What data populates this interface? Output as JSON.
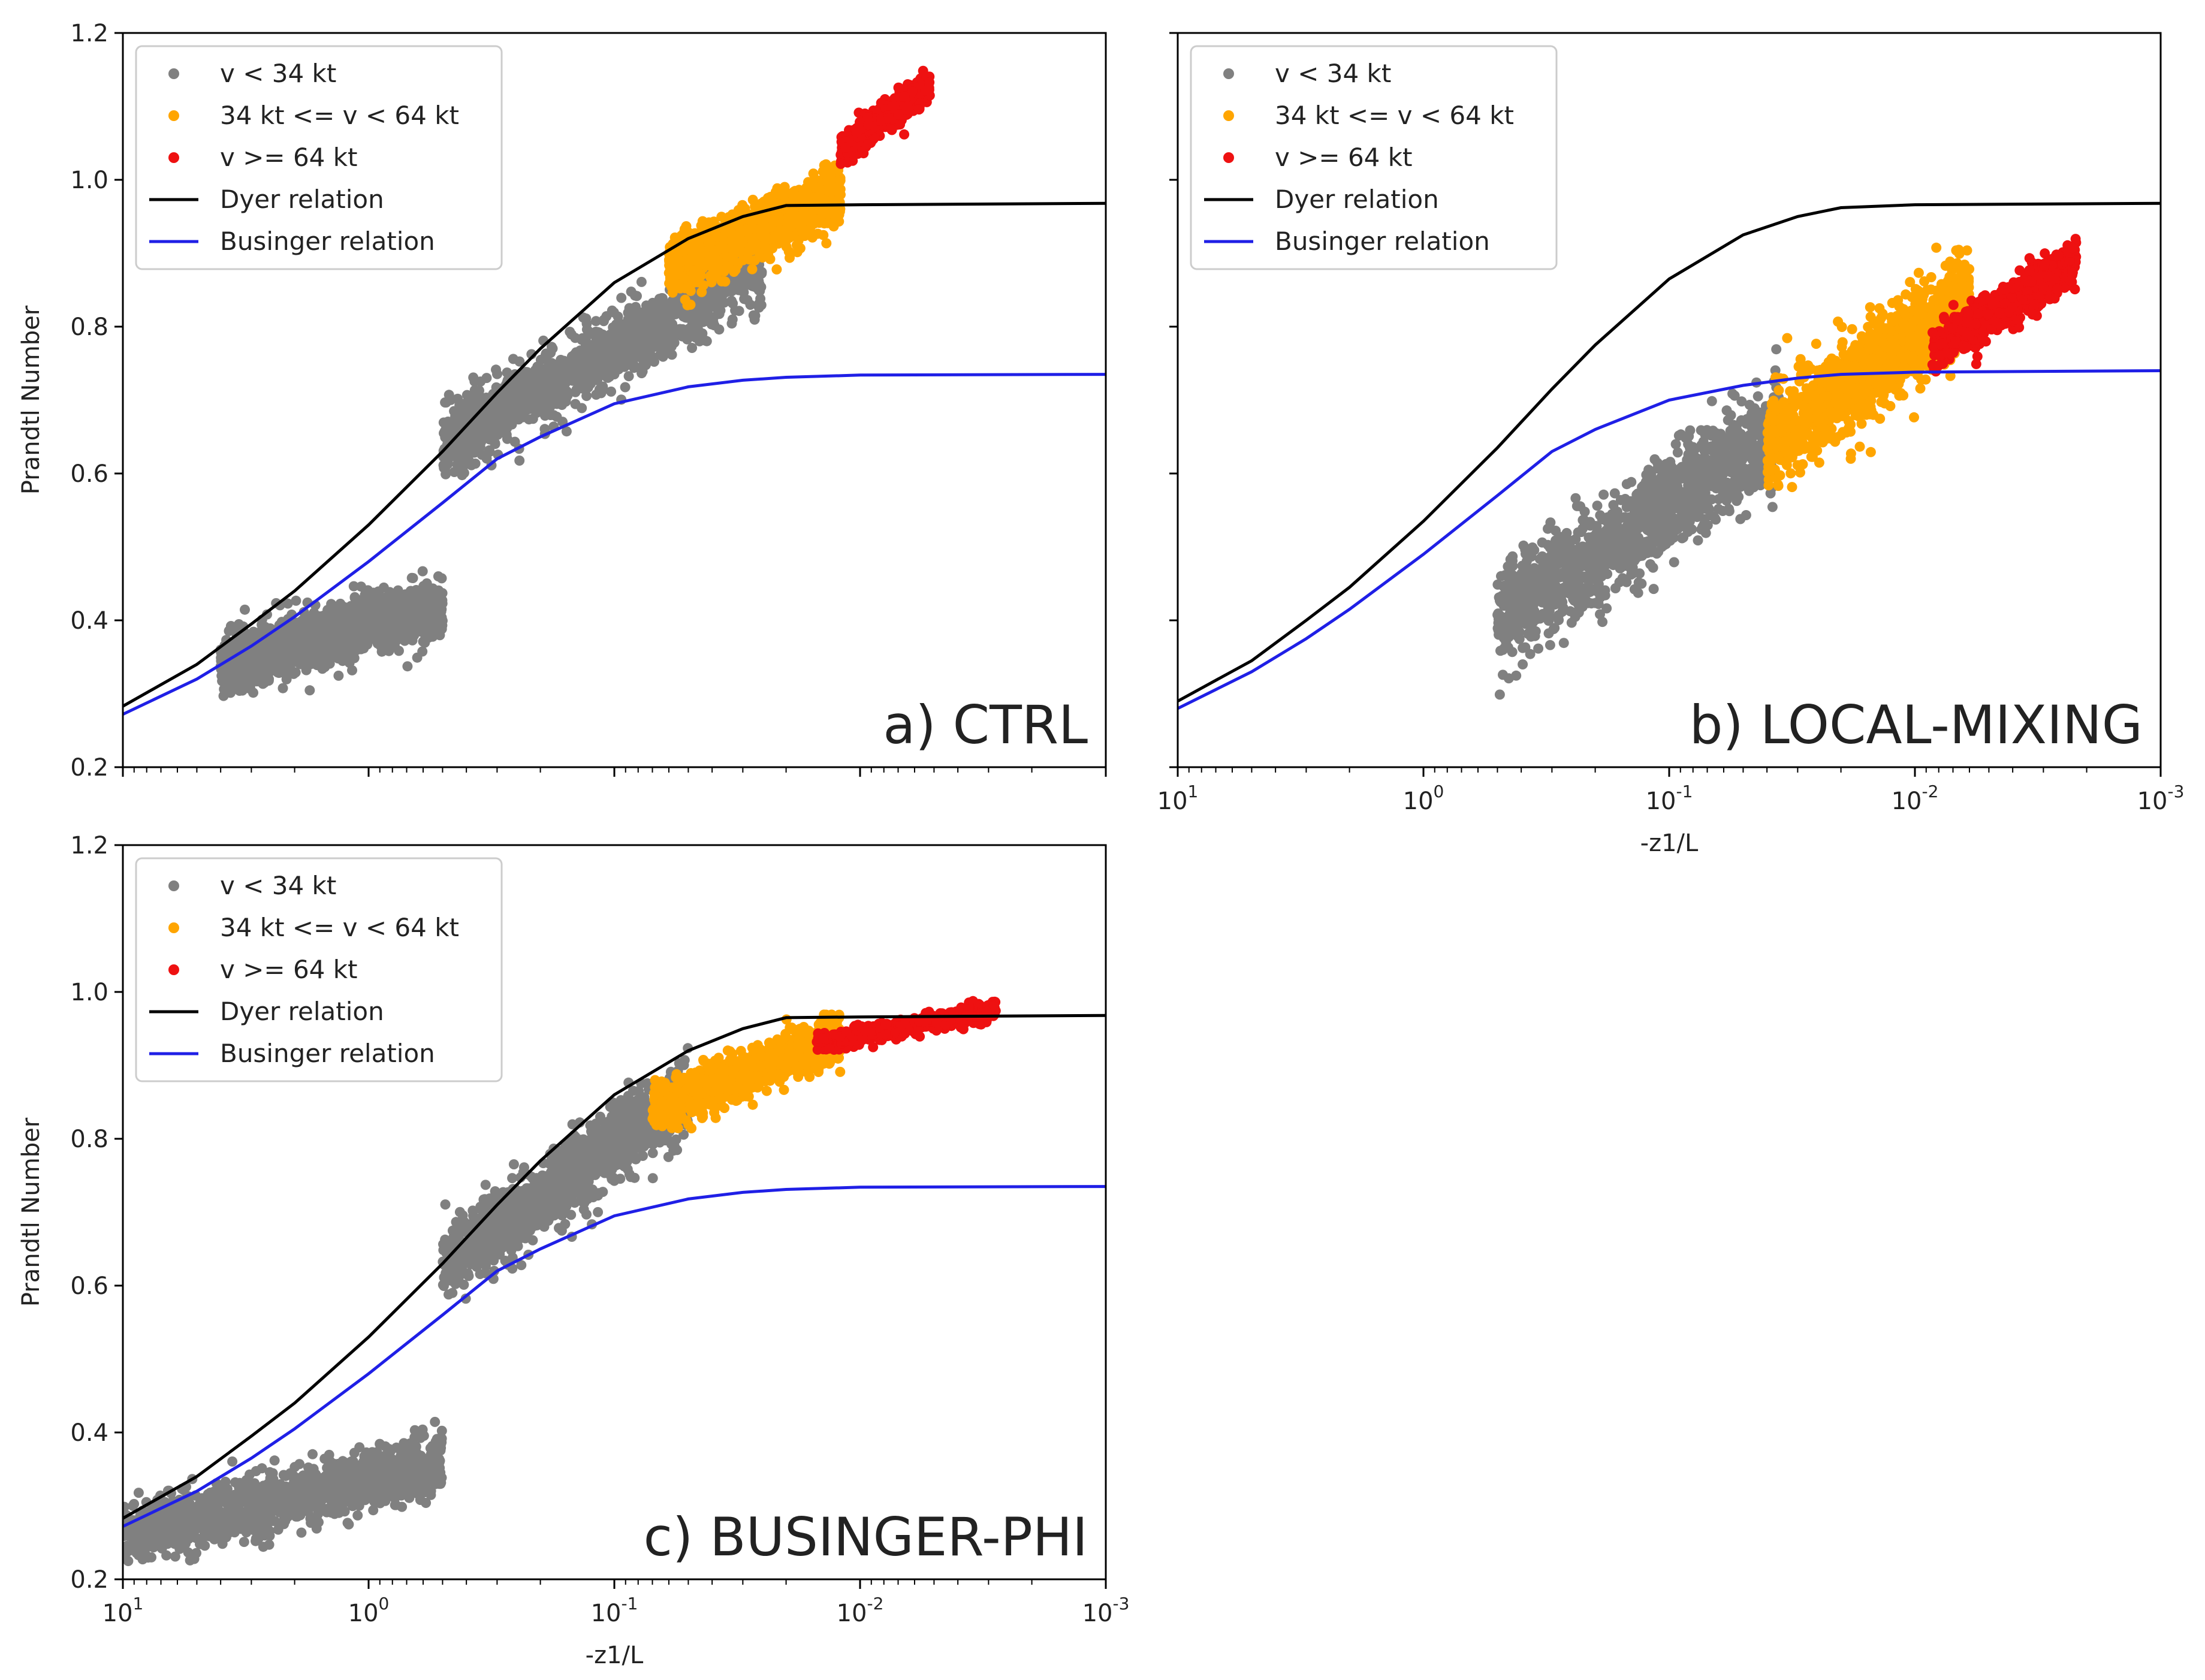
{
  "colors": {
    "gray": "#808080",
    "orange": "#ffa500",
    "red": "#ee1111",
    "dyer": "#000000",
    "businger": "#1f1fe6"
  },
  "chart_data": [
    {
      "id": "a",
      "type": "scatter",
      "panel_label": "a) CTRL",
      "xlabel": "",
      "ylabel": "Prandtl Number",
      "xscale": "log-reversed",
      "xlim": [
        10,
        0.001
      ],
      "ylim": [
        0.2,
        1.2
      ],
      "yticks": [
        "0.2",
        "0.4",
        "0.6",
        "0.8",
        "1.0",
        "1.2"
      ],
      "xticks": [],
      "legend": {
        "position": "top-left",
        "entries": [
          "v < 34 kt",
          "34 kt <= v < 64 kt",
          "v >= 64 kt",
          "Dyer relation",
          "Businger relation"
        ]
      },
      "lines": [
        {
          "name": "Dyer relation",
          "x": [
            10,
            5,
            3,
            2,
            1,
            0.5,
            0.3,
            0.2,
            0.1,
            0.05,
            0.03,
            0.02,
            0.01,
            0.001
          ],
          "y": [
            0.283,
            0.34,
            0.395,
            0.44,
            0.53,
            0.63,
            0.71,
            0.77,
            0.86,
            0.92,
            0.95,
            0.965,
            0.966,
            0.968
          ]
        },
        {
          "name": "Businger relation",
          "x": [
            10,
            5,
            3,
            2,
            1,
            0.5,
            0.3,
            0.2,
            0.1,
            0.05,
            0.03,
            0.02,
            0.01,
            0.001
          ],
          "y": [
            0.272,
            0.32,
            0.365,
            0.405,
            0.48,
            0.56,
            0.62,
            0.65,
            0.695,
            0.718,
            0.727,
            0.731,
            0.734,
            0.735
          ]
        }
      ],
      "clusters": [
        {
          "series": "v < 34 kt",
          "x_range": [
            4,
            0.5
          ],
          "y_center": [
            0.34,
            0.42
          ],
          "y_spread": 0.04
        },
        {
          "series": "v < 34 kt",
          "x_range": [
            0.5,
            0.025
          ],
          "y_center": [
            0.64,
            0.88
          ],
          "y_spread": 0.05
        },
        {
          "series": "34 kt <= v < 64 kt",
          "x_range": [
            0.06,
            0.012
          ],
          "y_center": [
            0.88,
            0.98
          ],
          "y_spread": 0.04
        },
        {
          "series": "v >= 64 kt",
          "x_range": [
            0.012,
            0.0052
          ],
          "y_center": [
            1.04,
            1.13
          ],
          "y_spread": 0.02
        }
      ]
    },
    {
      "id": "b",
      "type": "scatter",
      "panel_label": "b) LOCAL-MIXING",
      "xlabel": "-z1/L",
      "ylabel": "",
      "xscale": "log-reversed",
      "xlim": [
        10,
        0.001
      ],
      "ylim": [
        0.2,
        1.2
      ],
      "yticks": [],
      "xticks": [
        "10^1",
        "10^0",
        "10^-1",
        "10^-2",
        "10^-3"
      ],
      "legend": {
        "position": "top-left",
        "entries": [
          "v < 34 kt",
          "34 kt <= v < 64 kt",
          "v >= 64 kt",
          "Dyer relation",
          "Businger relation"
        ]
      },
      "lines": [
        {
          "name": "Dyer relation",
          "x": [
            10,
            5,
            3,
            2,
            1,
            0.5,
            0.3,
            0.2,
            0.1,
            0.05,
            0.03,
            0.02,
            0.01,
            0.001
          ],
          "y": [
            0.29,
            0.345,
            0.4,
            0.445,
            0.535,
            0.635,
            0.715,
            0.775,
            0.865,
            0.925,
            0.95,
            0.962,
            0.966,
            0.968
          ]
        },
        {
          "name": "Businger relation",
          "x": [
            10,
            5,
            3,
            2,
            1,
            0.5,
            0.3,
            0.2,
            0.1,
            0.05,
            0.03,
            0.02,
            0.01,
            0.001
          ],
          "y": [
            0.28,
            0.33,
            0.375,
            0.415,
            0.49,
            0.57,
            0.63,
            0.66,
            0.7,
            0.72,
            0.73,
            0.735,
            0.738,
            0.74
          ]
        }
      ],
      "clusters": [
        {
          "series": "v < 34 kt",
          "x_range": [
            0.5,
            0.035
          ],
          "y_center": [
            0.4,
            0.66
          ],
          "y_spread": 0.07
        },
        {
          "series": "34 kt <= v < 64 kt",
          "x_range": [
            0.04,
            0.006
          ],
          "y_center": [
            0.64,
            0.84
          ],
          "y_spread": 0.06
        },
        {
          "series": "v >= 64 kt",
          "x_range": [
            0.0085,
            0.0022
          ],
          "y_center": [
            0.77,
            0.89
          ],
          "y_spread": 0.03
        }
      ]
    },
    {
      "id": "c",
      "type": "scatter",
      "panel_label": "c) BUSINGER-PHI",
      "xlabel": "-z1/L",
      "ylabel": "Prandtl Number",
      "xscale": "log-reversed",
      "xlim": [
        10,
        0.001
      ],
      "ylim": [
        0.2,
        1.2
      ],
      "yticks": [
        "0.2",
        "0.4",
        "0.6",
        "0.8",
        "1.0",
        "1.2"
      ],
      "xticks": [
        "10^1",
        "10^0",
        "10^-1",
        "10^-2",
        "10^-3"
      ],
      "legend": {
        "position": "top-left",
        "entries": [
          "v < 34 kt",
          "34 kt <= v < 64 kt",
          "v >= 64 kt",
          "Dyer relation",
          "Businger relation"
        ]
      },
      "lines": [
        {
          "name": "Dyer relation",
          "x": [
            10,
            5,
            3,
            2,
            1,
            0.5,
            0.3,
            0.2,
            0.1,
            0.05,
            0.03,
            0.02,
            0.01,
            0.001
          ],
          "y": [
            0.283,
            0.34,
            0.395,
            0.44,
            0.53,
            0.63,
            0.71,
            0.77,
            0.86,
            0.92,
            0.95,
            0.965,
            0.966,
            0.968
          ]
        },
        {
          "name": "Businger relation",
          "x": [
            10,
            5,
            3,
            2,
            1,
            0.5,
            0.3,
            0.2,
            0.1,
            0.05,
            0.03,
            0.02,
            0.01,
            0.001
          ],
          "y": [
            0.272,
            0.32,
            0.365,
            0.405,
            0.48,
            0.56,
            0.62,
            0.65,
            0.695,
            0.718,
            0.727,
            0.731,
            0.734,
            0.735
          ]
        }
      ],
      "clusters": [
        {
          "series": "v < 34 kt",
          "x_range": [
            10,
            0.5
          ],
          "y_center": [
            0.26,
            0.36
          ],
          "y_spread": 0.04
        },
        {
          "series": "v < 34 kt",
          "x_range": [
            0.5,
            0.05
          ],
          "y_center": [
            0.63,
            0.86
          ],
          "y_spread": 0.05
        },
        {
          "series": "34 kt <= v < 64 kt",
          "x_range": [
            0.07,
            0.012
          ],
          "y_center": [
            0.84,
            0.94
          ],
          "y_spread": 0.03
        },
        {
          "series": "v >= 64 kt",
          "x_range": [
            0.015,
            0.0028
          ],
          "y_center": [
            0.93,
            0.975
          ],
          "y_spread": 0.012
        }
      ]
    }
  ]
}
